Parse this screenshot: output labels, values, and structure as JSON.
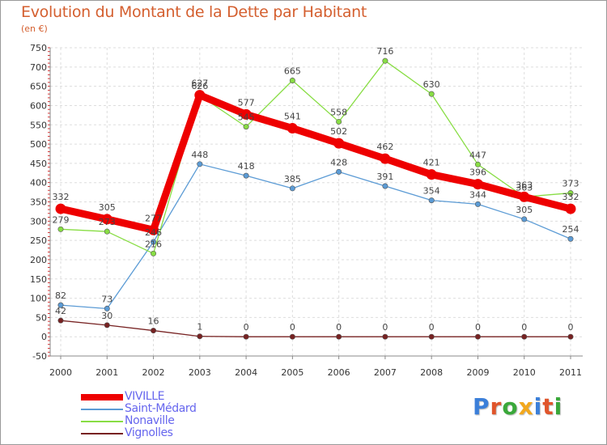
{
  "header": {
    "title": "Evolution du Montant de la Dette par Habitant",
    "unit": "(en €)"
  },
  "logo": {
    "text": "Proxiti",
    "letter_colors": [
      "#3b7fd9",
      "#e0552b",
      "#3aa83a",
      "#f2a81d",
      "#3b7fd9",
      "#e0552b",
      "#3aa83a"
    ]
  },
  "chart_data": {
    "type": "line",
    "title": "Evolution du Montant de la Dette par Habitant",
    "subtitle": "(en €)",
    "xlabel": "",
    "ylabel": "",
    "x": [
      "2000",
      "2001",
      "2002",
      "2003",
      "2004",
      "2005",
      "2006",
      "2007",
      "2008",
      "2009",
      "2010",
      "2011"
    ],
    "ylim": [
      -50,
      750
    ],
    "yticks": [
      -50,
      0,
      50,
      100,
      150,
      200,
      250,
      300,
      350,
      400,
      450,
      500,
      550,
      600,
      650,
      700,
      750
    ],
    "grid": true,
    "legend_position": "bottom-left",
    "series": [
      {
        "name": "VIVILLE",
        "color": "#ee0000",
        "values": [
          332,
          305,
          277,
          627,
          577,
          541,
          502,
          462,
          421,
          396,
          363,
          332
        ]
      },
      {
        "name": "Saint-Médard",
        "color": "#5b9bd5",
        "values": [
          82,
          73,
          246,
          448,
          418,
          385,
          428,
          391,
          354,
          344,
          305,
          254
        ]
      },
      {
        "name": "Nonaville",
        "color": "#88dd44",
        "values": [
          279,
          273,
          216,
          626,
          545,
          665,
          558,
          716,
          630,
          447,
          363,
          373
        ]
      },
      {
        "name": "Vignolles",
        "color": "#772222",
        "values": [
          42,
          30,
          16,
          1,
          0,
          0,
          0,
          0,
          0,
          0,
          0,
          0
        ]
      }
    ]
  }
}
